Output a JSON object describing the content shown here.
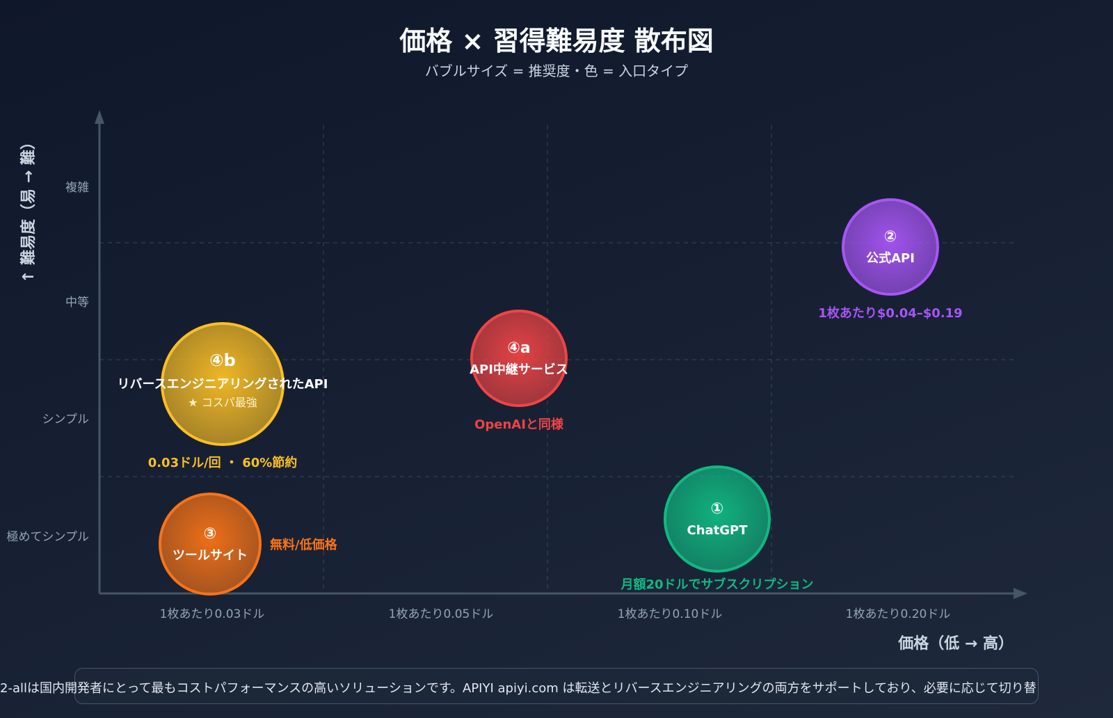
{
  "chart_data": {
    "type": "scatter",
    "title": "価格 × 習得難易度 散布図",
    "subtitle": "バブルサイズ = 推奨度・色 = 入口タイプ",
    "xlabel": "価格（低 → 高）",
    "ylabel": "↑ 難易度（易 → 難）",
    "x_ticks": [
      "1枚あたり0.03ドル",
      "1枚あたり0.05ドル",
      "1枚あたり0.10ドル",
      "1枚あたり0.20ドル"
    ],
    "y_ticks": [
      "極めてシンプル",
      "シンプル",
      "中等",
      "複雑"
    ],
    "grid": true,
    "points": [
      {
        "id": "②",
        "label": "公式API",
        "note": "1枚あたり$0.04–$0.19",
        "x": 3.9,
        "y": 3.5,
        "size": 68,
        "color": "#a855f7"
      },
      {
        "id": "④a",
        "label": "API中継サービス",
        "note": "OpenAIと同様",
        "x": 2.4,
        "y": 2.55,
        "size": 68,
        "color": "#ef4444"
      },
      {
        "id": "①",
        "label": "ChatGPT",
        "note": "月額20ドルでサブスクリプション",
        "x": 3.3,
        "y": 1.15,
        "size": 75,
        "color": "#10b981"
      },
      {
        "id": "④b",
        "label": "リバースエンジニアリングされたAPI",
        "extra": "★ コスパ最強",
        "note": "0.03ドル/回 ・ 60%節約",
        "x": 1.05,
        "y": 2.3,
        "size": 87,
        "color": "#fbbf24"
      },
      {
        "id": "③",
        "label": "ツールサイト",
        "note": "無料/低価格",
        "x": 1.0,
        "y": 0.6,
        "size": 72,
        "color": "#f97316"
      }
    ]
  },
  "footer": {
    "text": "2-allは国内開発者にとって最もコストパフォーマンスの高いソリューションです。APIYI apiyi.com は転送とリバースエンジニアリングの両方をサポートしており、必要に応じて切り替"
  }
}
